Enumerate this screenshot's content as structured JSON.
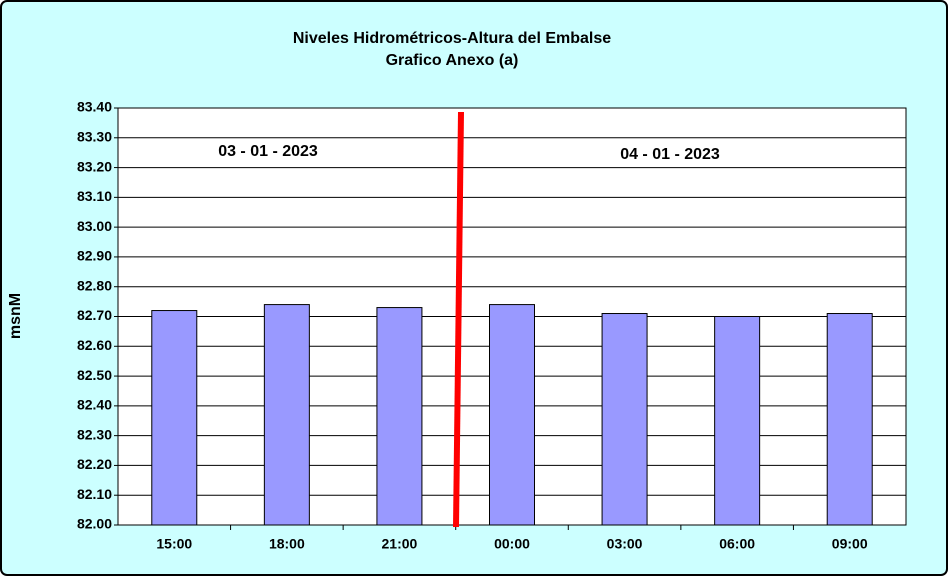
{
  "chart_data": {
    "type": "bar",
    "title": "Niveles Hidrométricos-Altura del Embalse",
    "subtitle": "Grafico Anexo (a)",
    "y_label": "msnM",
    "categories": [
      "15:00",
      "18:00",
      "21:00",
      "00:00",
      "03:00",
      "06:00",
      "09:00"
    ],
    "values": [
      82.72,
      82.74,
      82.73,
      82.74,
      82.71,
      82.7,
      82.71
    ],
    "color": "#9999ff",
    "ylim": [
      82.0,
      83.4
    ],
    "yticks": [
      {
        "value": 82.0,
        "label": "82.00"
      },
      {
        "value": 82.1,
        "label": "82.10"
      },
      {
        "value": 82.2,
        "label": "82.20"
      },
      {
        "value": 82.3,
        "label": "82.30"
      },
      {
        "value": 82.4,
        "label": "82.40"
      },
      {
        "value": 82.5,
        "label": "82.50"
      },
      {
        "value": 82.6,
        "label": "82.60"
      },
      {
        "value": 82.7,
        "label": "82.70"
      },
      {
        "value": 82.8,
        "label": "82.80"
      },
      {
        "value": 82.9,
        "label": "82.90"
      },
      {
        "value": 83.0,
        "label": "83.00"
      },
      {
        "value": 83.1,
        "label": "83.10"
      },
      {
        "value": 83.2,
        "label": "83.20"
      },
      {
        "value": 83.3,
        "label": "83.30"
      },
      {
        "value": 83.4,
        "label": "83.40"
      }
    ],
    "grid": true,
    "annotations": [
      "03 - 01 - 2023",
      "04 - 01 - 2023"
    ]
  }
}
